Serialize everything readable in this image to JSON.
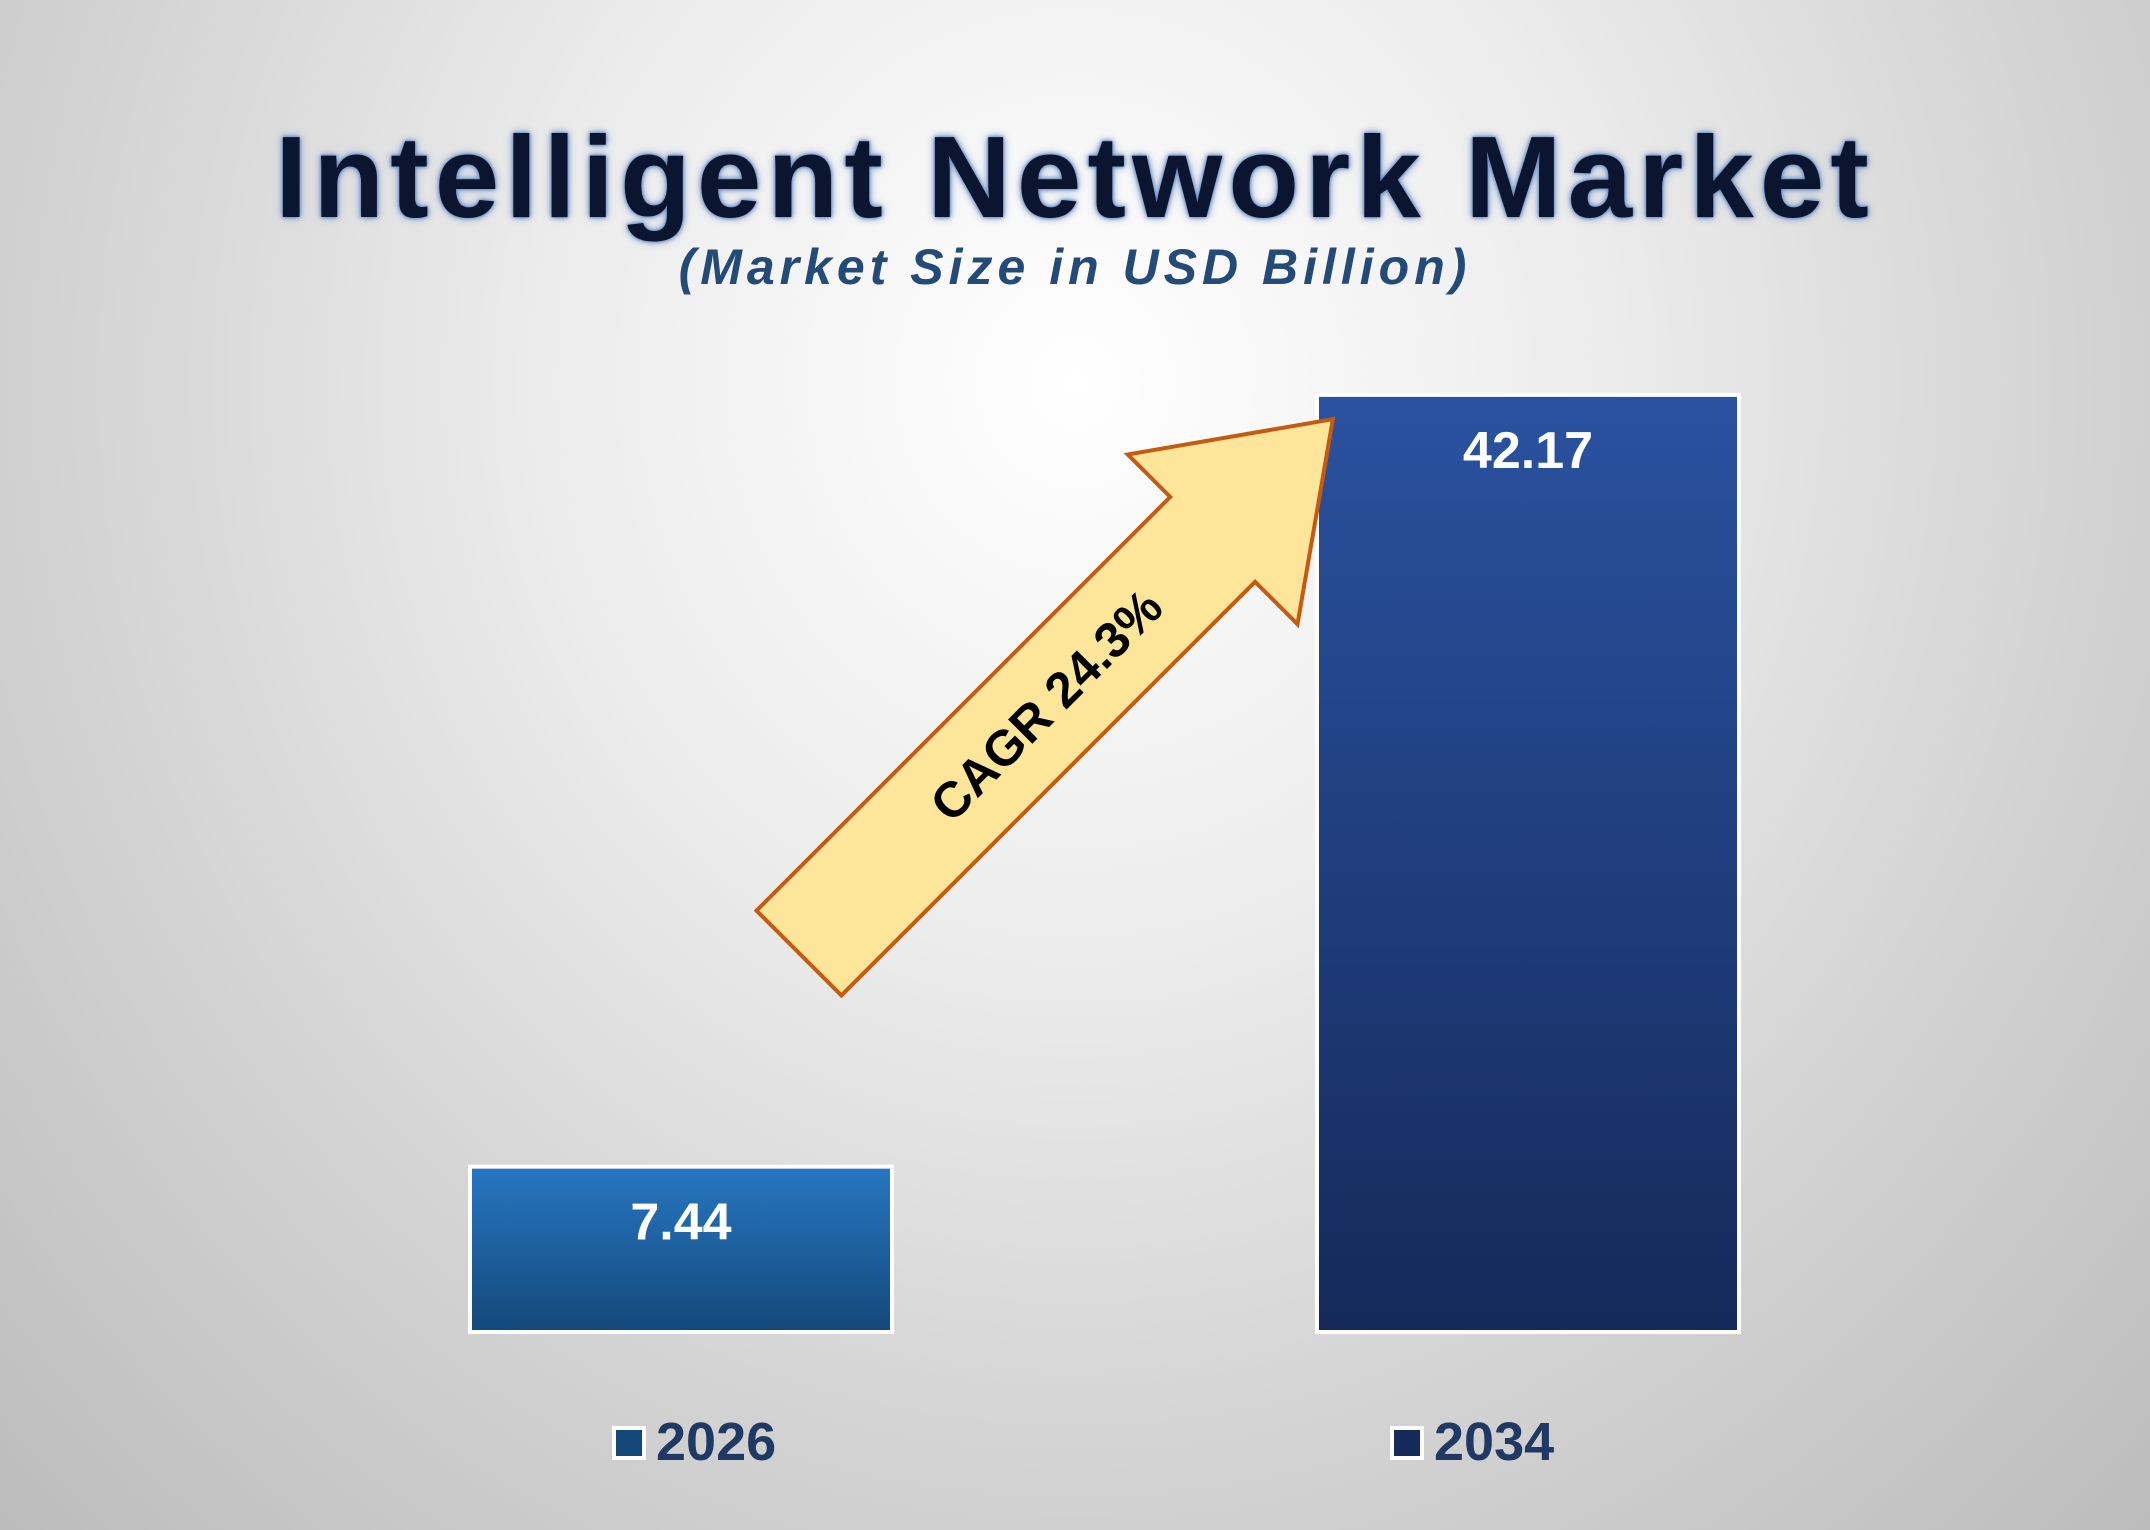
{
  "chart_data": {
    "type": "bar",
    "title": "Intelligent Network Market",
    "subtitle": "(Market Size in USD Billion)",
    "categories": [
      "2026",
      "2034"
    ],
    "values": [
      7.44,
      42.17
    ],
    "value_labels": [
      "7.44",
      "42.17"
    ],
    "ylim": [
      0,
      45
    ],
    "grid": false,
    "legend_placement": "bottom",
    "annotation": "CAGR 24.3%",
    "colors": {
      "bar_2026_top": "#2877c2",
      "bar_2026_bottom": "#134879",
      "bar_2034_top": "#2a52a0",
      "bar_2034_bottom": "#15295a",
      "arrow_fill": "#fde59a",
      "arrow_stroke": "#c55a11",
      "legend_text": "#1f3864"
    }
  }
}
